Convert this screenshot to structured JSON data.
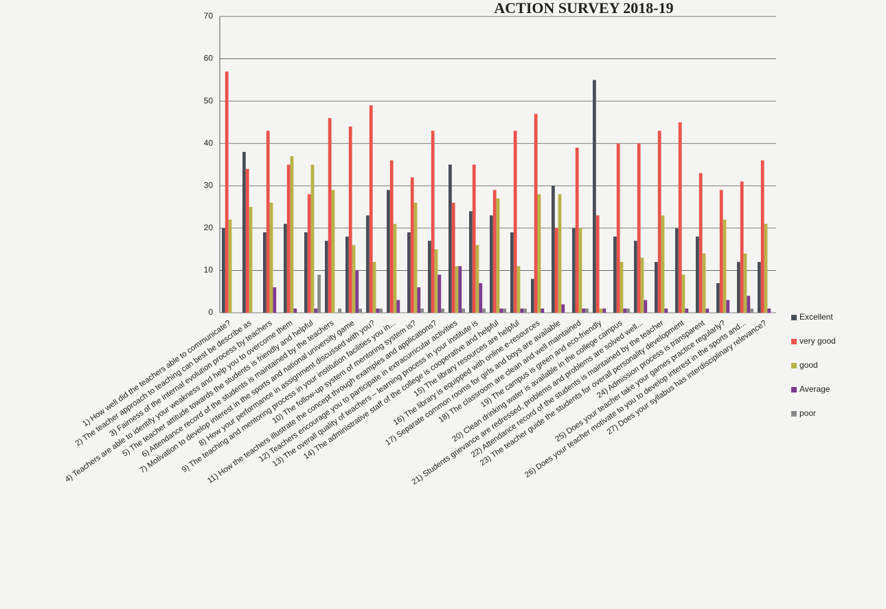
{
  "chart_data": {
    "type": "bar",
    "title": "ACTION SURVEY 2018-19",
    "categories": [
      "1) How well did the teachers able to communicate?",
      "2) The teacher approach to teaching can best be describe as",
      "3) Fairness of the internal evolution process by teachers",
      "4) Teachers are able to identify your weakness and help you to overcome them",
      "5) The teacher attitude towards the students is friendly and helpful",
      "6) Attendance record of the students is maintained by the teachers",
      "7) Motivation to develop interest in the sports and national university game",
      "8) How your performance in assignment discussed with you?",
      "9) The teaching and mentoring process in your institution facilities you in...",
      "10) The follow-up system of mentoring system is?",
      "11) How the teachers illustrate the concept through examples and applications?",
      "12) Teachers encourage you to participate in extracurricular activities",
      "13) The overall quality of teachers – learning process in your institute is",
      "14) The administrative staff of the college is cooperative and helpful",
      "15) The library resources are helpful",
      "16) The library is equipped with online e-resources",
      "17) Separate common rooms for girls and boys are available",
      "18) The classroom are clean and well maintained",
      "19) The campus is green and eco-friendly",
      "20) Clean drinking water is available in the college campus",
      "21) Students grievance are redressed, problems and problems are solved well...",
      "22) Attendance record of the students is maintained by the teacher",
      "23) The teacher guide the students for overall personality development",
      "24) Admission process is transparent",
      "25) Does your teacher take your games practice regularly?",
      "26) Does your teacher motivate to you to develop interest in the sports and...",
      "27) Does your syllabus has interdisciplinary relevance?"
    ],
    "series": [
      {
        "name": "Excellent",
        "color": "#4a4e58",
        "values": [
          20,
          38,
          19,
          21,
          19,
          17,
          18,
          23,
          29,
          19,
          17,
          35,
          24,
          23,
          19,
          8,
          30,
          20,
          55,
          18,
          17,
          12,
          20,
          18,
          7,
          12,
          12
        ]
      },
      {
        "name": "very good",
        "color": "#e8544c",
        "values": [
          57,
          34,
          43,
          35,
          28,
          46,
          44,
          49,
          36,
          32,
          43,
          26,
          35,
          29,
          43,
          47,
          20,
          39,
          23,
          40,
          40,
          43,
          45,
          33,
          29,
          31,
          36
        ]
      },
      {
        "name": "good",
        "color": "#bab24a",
        "values": [
          22,
          25,
          26,
          37,
          35,
          29,
          16,
          12,
          21,
          26,
          15,
          11,
          16,
          27,
          11,
          28,
          28,
          20,
          1,
          12,
          13,
          23,
          9,
          14,
          22,
          14,
          21
        ]
      },
      {
        "name": "Average",
        "color": "#7e3c8f",
        "values": [
          0,
          0,
          6,
          1,
          1,
          0,
          10,
          1,
          3,
          6,
          9,
          11,
          7,
          1,
          1,
          1,
          2,
          1,
          1,
          1,
          3,
          1,
          1,
          1,
          3,
          4,
          1
        ]
      },
      {
        "name": "poor",
        "color": "#8a8a8a",
        "values": [
          0,
          0,
          0,
          0,
          9,
          1,
          1,
          1,
          0,
          1,
          1,
          1,
          1,
          1,
          1,
          0,
          0,
          1,
          0,
          1,
          0,
          0,
          0,
          0,
          0,
          1,
          0
        ]
      }
    ],
    "ylim": [
      0,
      70
    ],
    "yticks": [
      0,
      10,
      20,
      30,
      40,
      50,
      60,
      70
    ],
    "grid": true,
    "legend": "right"
  }
}
